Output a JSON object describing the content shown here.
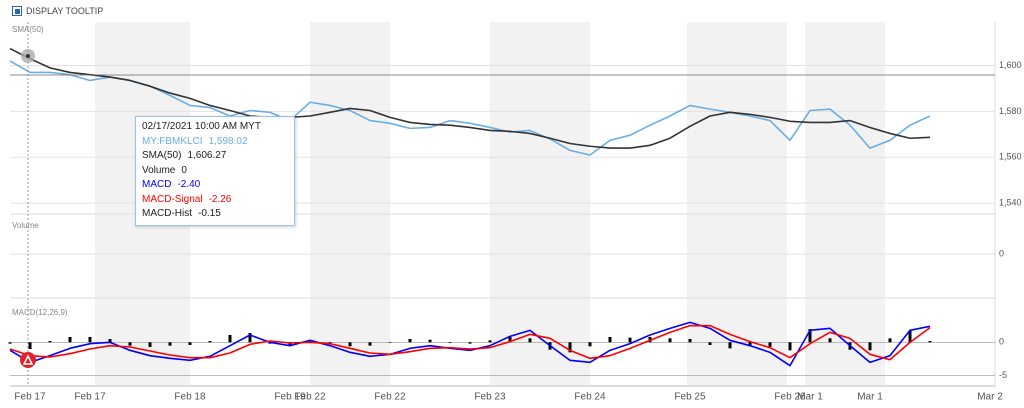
{
  "toolbar": {
    "checkbox_label": "DISPLAY TOOLTIP"
  },
  "chart_data": [
    {
      "type": "line",
      "title": "SMA(50)",
      "ylim": [
        1537,
        1619
      ],
      "yticks": [
        {
          "value": 1540,
          "label": "1,540"
        },
        {
          "value": 1560,
          "label": "1,560"
        },
        {
          "value": 1580,
          "label": "1,580"
        },
        {
          "value": 1600,
          "label": "1,600"
        }
      ],
      "grid": true,
      "series": [
        {
          "name": "MY:FBMKLCI",
          "color": "#6aaee6",
          "values": [
            1602,
            1597,
            1597,
            1596,
            1593.5,
            1595,
            1593.5,
            1591,
            1587,
            1582.6,
            1581.7,
            1578,
            1580.4,
            1579.6,
            1576,
            1584,
            1582.6,
            1580.4,
            1576,
            1574.8,
            1572.6,
            1573,
            1576,
            1574.8,
            1573,
            1571,
            1571.7,
            1568,
            1563,
            1561,
            1567.4,
            1569.6,
            1574,
            1578,
            1582.6,
            1581,
            1579.6,
            1578,
            1576,
            1567.4,
            1580.4,
            1581,
            1574,
            1564,
            1567.4,
            1574,
            1578,
            null,
            null,
            null
          ]
        },
        {
          "name": "SMA(50)",
          "color": "#333333",
          "values": [
            1607.4,
            1603,
            1599,
            1597,
            1596,
            1595,
            1593.5,
            1591,
            1588,
            1585.7,
            1582.6,
            1580.4,
            1578,
            1577.4,
            1577.4,
            1578,
            1579.6,
            1581.3,
            1580.4,
            1577.4,
            1575.2,
            1574.3,
            1574,
            1573,
            1571.7,
            1571.3,
            1570.4,
            1568.3,
            1566,
            1564.8,
            1564,
            1564,
            1565.2,
            1568.3,
            1573.5,
            1578,
            1579.6,
            1578.7,
            1577.4,
            1575.7,
            1575.2,
            1575.2,
            1576,
            1573,
            1570.4,
            1568.3,
            1568.7,
            null,
            null,
            null
          ]
        }
      ]
    },
    {
      "type": "line",
      "title": "Volume",
      "ylim": [
        -1,
        1
      ],
      "yticks": [
        0
      ],
      "grid": false,
      "series": []
    },
    {
      "type": "line",
      "title": "MACD(12,26,9)",
      "ylim": [
        -6.4,
        5.6
      ],
      "yticks": [
        -5,
        0
      ],
      "grid": false,
      "categories": [
        null,
        "Feb 17",
        null,
        null,
        "Feb 17",
        null,
        null,
        null,
        null,
        "Feb 18",
        null,
        null,
        null,
        null,
        "Feb 19",
        "Feb 22",
        null,
        null,
        null,
        "Feb 22",
        null,
        null,
        null,
        null,
        "Feb 23",
        null,
        null,
        null,
        null,
        "Feb 24",
        null,
        null,
        null,
        null,
        "Feb 25",
        null,
        null,
        null,
        null,
        "Feb 26",
        "Mar 1",
        null,
        null,
        "Mar 1",
        null,
        null,
        null,
        null,
        null,
        "Mar 2"
      ],
      "series": [
        {
          "name": "MACD-Hist",
          "type": "bar",
          "color": "#000000",
          "values": [
            -0.2,
            -1.0,
            0.2,
            0.8,
            0.8,
            0.5,
            -0.5,
            -0.7,
            -0.5,
            -0.4,
            0.2,
            1.1,
            1.4,
            -0.2,
            -0.4,
            0.3,
            -0.3,
            -0.6,
            -0.5,
            0,
            0.5,
            0.4,
            -0.1,
            -0.2,
            0.3,
            0.8,
            0.6,
            -1.1,
            -1.5,
            -0.6,
            0.8,
            0.7,
            0.8,
            0.6,
            0.5,
            -0.4,
            -0.9,
            -0.6,
            -0.7,
            -1.2,
            2.0,
            0.6,
            -1.1,
            -1.2,
            0.6,
            1.8,
            0.2,
            null,
            null,
            null
          ]
        },
        {
          "name": "MACD",
          "color": "#0000ff",
          "values": [
            -1.2,
            -3,
            -2,
            -0.9,
            -0.2,
            0,
            -1.2,
            -2,
            -2.4,
            -2.7,
            -2.1,
            -0.5,
            1.1,
            0,
            -0.5,
            0.3,
            -0.5,
            -1.5,
            -2.1,
            -1.8,
            -0.9,
            -0.5,
            -0.9,
            -1.2,
            -0.5,
            0.9,
            1.8,
            -0.5,
            -2.7,
            -3,
            -1.2,
            -0.2,
            1.1,
            2.1,
            3,
            2.1,
            0.3,
            -0.5,
            -1.5,
            -3.5,
            1.8,
            2.1,
            -0.5,
            -3,
            -2,
            1.8,
            2.4,
            null,
            null,
            null
          ]
        },
        {
          "name": "MACD-Signal",
          "color": "#ff0000",
          "values": [
            -1.0,
            -2.0,
            -2.2,
            -1.7,
            -1.0,
            -0.5,
            -0.7,
            -1.3,
            -1.9,
            -2.3,
            -2.3,
            -1.6,
            -0.3,
            0.2,
            -0.1,
            0.0,
            -0.2,
            -0.9,
            -1.6,
            -1.8,
            -1.4,
            -0.9,
            -0.8,
            -1.0,
            -0.8,
            0.1,
            1.2,
            0.6,
            -1.2,
            -2.4,
            -2.0,
            -0.9,
            0.3,
            1.5,
            2.5,
            2.5,
            1.2,
            0.1,
            -0.8,
            -2.3,
            -0.2,
            1.5,
            0.6,
            -1.8,
            -2.6,
            0.0,
            2.2,
            null,
            null,
            null
          ]
        }
      ]
    }
  ],
  "tooltip": {
    "date": "02/17/2021 10:00 AM MYT",
    "rows": [
      {
        "label": "MY:FBMKLCI",
        "value": "1,598.02",
        "color": "#6aaee6"
      },
      {
        "label": "SMA(50)",
        "value": "1,606.27",
        "color": "#222222"
      },
      {
        "label": "Volume",
        "value": "0",
        "color": "#222222"
      },
      {
        "label": "MACD",
        "value": "-2.40",
        "color": "#0000ff"
      },
      {
        "label": "MACD-Signal",
        "value": "-2.26",
        "color": "#ff0000"
      },
      {
        "label": "MACD-Hist",
        "value": "-0.15",
        "color": "#222222"
      }
    ]
  }
}
